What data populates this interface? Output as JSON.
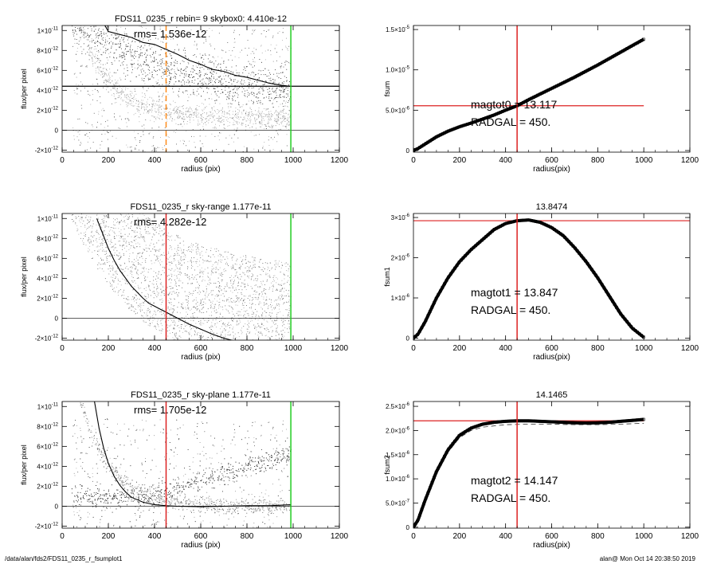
{
  "footer": {
    "path": "/data/alan/fds2/FDS11_0235_r_fsumplot1",
    "stamp": "alan@  Mon Oct 14 20:38:50 2019"
  },
  "chart_data": [
    {
      "type": "scatter",
      "title": "FDS11_0235_r rebin= 9    skybox0:  4.410e-12",
      "annotation": "rms= 1.536e-12",
      "xlabel": "radius (pix)",
      "ylabel": "flux/per pixel",
      "xlim": [
        0,
        1200
      ],
      "ylim": [
        -2.2e-12,
        1.05e-11
      ],
      "xticks": [
        0,
        200,
        400,
        600,
        800,
        1000,
        1200
      ],
      "yticks": [
        {
          "v": 1e-11,
          "m": "1×10",
          "e": "-11"
        },
        {
          "v": 8e-12,
          "m": "8×10",
          "e": "-12"
        },
        {
          "v": 6e-12,
          "m": "6×10",
          "e": "-12"
        },
        {
          "v": 4e-12,
          "m": "4×10",
          "e": "-12"
        },
        {
          "v": 2e-12,
          "m": "2×10",
          "e": "-12"
        },
        {
          "v": 0,
          "m": "0",
          "e": ""
        },
        {
          "v": -2e-12,
          "m": "-2×10",
          "e": "-12"
        }
      ],
      "hlines": [
        {
          "y": 4.41e-12,
          "color": "#000000",
          "width": 1.3
        },
        {
          "y": 0,
          "color": "#000000",
          "width": 0.7
        }
      ],
      "vlines": [
        {
          "x": 450,
          "color": "#ff8c1a",
          "dash": true
        },
        {
          "x": 990,
          "color": "#22cc22"
        }
      ],
      "profile": {
        "x": [
          185,
          200,
          250,
          300,
          350,
          400,
          450,
          500,
          550,
          600,
          650,
          700,
          750,
          800,
          850,
          900,
          950,
          990
        ],
        "y": [
          1.05e-11,
          9.9e-12,
          9.6e-12,
          9.3e-12,
          8.8e-12,
          8.6e-12,
          8.1e-12,
          7.6e-12,
          7e-12,
          6.6e-12,
          6.1e-12,
          5.9e-12,
          5.5e-12,
          5.3e-12,
          5e-12,
          4.7e-12,
          4.5e-12,
          4.4e-12
        ]
      },
      "scatter": "cloud"
    },
    {
      "type": "line",
      "title": "",
      "xlabel": "radius(pix)",
      "ylabel": "fsum",
      "xlim": [
        0,
        1200
      ],
      "ylim": [
        -2e-07,
        1.55e-05
      ],
      "xticks": [
        0,
        200,
        400,
        600,
        800,
        1000,
        1200
      ],
      "yticks": [
        {
          "v": 1.5e-05,
          "m": "1.5×10",
          "e": "-5"
        },
        {
          "v": 1e-05,
          "m": "1.0×10",
          "e": "-5"
        },
        {
          "v": 5e-06,
          "m": "5.0×10",
          "e": "-6"
        },
        {
          "v": 0,
          "m": "0",
          "e": ""
        }
      ],
      "hlines": [
        {
          "y": 5.55e-06,
          "color": "#dd2222",
          "xmax": 1000
        }
      ],
      "vlines": [
        {
          "x": 450,
          "color": "#dd2222"
        }
      ],
      "annotations": [
        "magtot0 =  13.117",
        "RADGAL =    450."
      ],
      "curve": {
        "x": [
          0,
          20,
          50,
          100,
          150,
          200,
          250,
          300,
          350,
          400,
          450,
          500,
          550,
          600,
          650,
          700,
          750,
          800,
          850,
          900,
          950,
          1000
        ],
        "y": [
          0,
          2.5e-07,
          8e-07,
          1.7e-06,
          2.4e-06,
          2.95e-06,
          3.4e-06,
          3.9e-06,
          4.4e-06,
          5e-06,
          5.55e-06,
          6.3e-06,
          7e-06,
          7.7e-06,
          8.4e-06,
          9.1e-06,
          9.85e-06,
          1.06e-05,
          1.14e-05,
          1.22e-05,
          1.3e-05,
          1.38e-05
        ]
      }
    },
    {
      "type": "scatter",
      "title": "FDS11_0235_r sky-range  1.177e-11",
      "annotation": "rms= 4.282e-12",
      "xlabel": "radius (pix)",
      "ylabel": "flux/per pixel",
      "xlim": [
        0,
        1200
      ],
      "ylim": [
        -2.2e-12,
        1.05e-11
      ],
      "xticks": [
        0,
        200,
        400,
        600,
        800,
        1000,
        1200
      ],
      "yticks": [
        {
          "v": 1e-11,
          "m": "1×10",
          "e": "-11"
        },
        {
          "v": 8e-12,
          "m": "8×10",
          "e": "-12"
        },
        {
          "v": 6e-12,
          "m": "6×10",
          "e": "-12"
        },
        {
          "v": 4e-12,
          "m": "4×10",
          "e": "-12"
        },
        {
          "v": 2e-12,
          "m": "2×10",
          "e": "-12"
        },
        {
          "v": 0,
          "m": "0",
          "e": ""
        },
        {
          "v": -2e-12,
          "m": "-2×10",
          "e": "-12"
        }
      ],
      "hlines": [
        {
          "y": 0,
          "color": "#000000",
          "width": 0.7
        }
      ],
      "vlines": [
        {
          "x": 450,
          "color": "#dd2222"
        },
        {
          "x": 990,
          "color": "#22cc22"
        }
      ],
      "profile": {
        "x": [
          150,
          175,
          200,
          225,
          250,
          275,
          300,
          325,
          350,
          375,
          400,
          425,
          450,
          475,
          500,
          550,
          600,
          650,
          700,
          750
        ],
        "y": [
          1e-11,
          8.5e-12,
          7e-12,
          5.8e-12,
          4.8e-12,
          4e-12,
          3.2e-12,
          2.6e-12,
          2e-12,
          1.5e-12,
          1.2e-12,
          9e-13,
          6e-13,
          3e-13,
          0,
          -6e-13,
          -1.1e-12,
          -1.6e-12,
          -2e-12,
          -2.3e-12
        ]
      },
      "scatter": "sparse"
    },
    {
      "type": "line",
      "title": "13.8474",
      "xlabel": "radius(pix)",
      "ylabel": "fsum1",
      "xlim": [
        0,
        1200
      ],
      "ylim": [
        -5e-08,
        3.1e-06
      ],
      "xticks": [
        0,
        200,
        400,
        600,
        800,
        1000,
        1200
      ],
      "yticks": [
        {
          "v": 3e-06,
          "m": "3×10",
          "e": "-6"
        },
        {
          "v": 2e-06,
          "m": "2×10",
          "e": "-6"
        },
        {
          "v": 1e-06,
          "m": "1×10",
          "e": "-6"
        },
        {
          "v": 0,
          "m": "0",
          "e": ""
        }
      ],
      "hlines": [
        {
          "y": 2.92e-06,
          "color": "#dd2222",
          "xmax": 1200
        }
      ],
      "vlines": [
        {
          "x": 450,
          "color": "#dd2222"
        }
      ],
      "annotations": [
        "magtot1 =  13.847",
        "RADGAL =    450."
      ],
      "curve": {
        "x": [
          0,
          20,
          50,
          100,
          150,
          200,
          250,
          300,
          350,
          400,
          450,
          500,
          550,
          600,
          650,
          700,
          750,
          800,
          850,
          900,
          950,
          1000
        ],
        "y": [
          0,
          1e-07,
          4e-07,
          1e-06,
          1.5e-06,
          1.9e-06,
          2.2e-06,
          2.45e-06,
          2.7e-06,
          2.85e-06,
          2.92e-06,
          2.94e-06,
          2.88e-06,
          2.75e-06,
          2.55e-06,
          2.25e-06,
          1.9e-06,
          1.5e-06,
          1.05e-06,
          6e-07,
          2.5e-07,
          2e-08
        ]
      }
    },
    {
      "type": "scatter",
      "title": "FDS11_0235_r sky-plane  1.177e-11",
      "annotation": "rms= 1.705e-12",
      "xlabel": "radius (pix)",
      "ylabel": "flux/per pixel",
      "xlim": [
        0,
        1200
      ],
      "ylim": [
        -2.2e-12,
        1.05e-11
      ],
      "xticks": [
        0,
        200,
        400,
        600,
        800,
        1000,
        1200
      ],
      "yticks": [
        {
          "v": 1e-11,
          "m": "1×10",
          "e": "-11"
        },
        {
          "v": 8e-12,
          "m": "8×10",
          "e": "-12"
        },
        {
          "v": 6e-12,
          "m": "6×10",
          "e": "-12"
        },
        {
          "v": 4e-12,
          "m": "4×10",
          "e": "-12"
        },
        {
          "v": 2e-12,
          "m": "2×10",
          "e": "-12"
        },
        {
          "v": 0,
          "m": "0",
          "e": ""
        },
        {
          "v": -2e-12,
          "m": "-2×10",
          "e": "-12"
        }
      ],
      "hlines": [
        {
          "y": 0,
          "color": "#000000",
          "width": 0.7
        }
      ],
      "vlines": [
        {
          "x": 450,
          "color": "#dd2222"
        },
        {
          "x": 990,
          "color": "#22cc22"
        }
      ],
      "profile": {
        "x": [
          140,
          160,
          180,
          200,
          225,
          250,
          275,
          300,
          350,
          400,
          450,
          500,
          600,
          700,
          800,
          900,
          990
        ],
        "y": [
          1.05e-11,
          7.8e-12,
          5.8e-12,
          4.3e-12,
          3e-12,
          2.1e-12,
          1.4e-12,
          9e-13,
          4e-13,
          1.5e-13,
          5e-14,
          0,
          -5e-14,
          0,
          5e-14,
          5e-14,
          1.5e-13
        ]
      },
      "scatter": "plane"
    },
    {
      "type": "line",
      "title": "14.1465",
      "xlabel": "radius(pix)",
      "ylabel": "fsum2",
      "xlim": [
        0,
        1200
      ],
      "ylim": [
        -2e-08,
        2.6e-06
      ],
      "xticks": [
        0,
        200,
        400,
        600,
        800,
        1000,
        1200
      ],
      "yticks": [
        {
          "v": 2.5e-06,
          "m": "2.5×10",
          "e": "-6"
        },
        {
          "v": 2e-06,
          "m": "2.0×10",
          "e": "-6"
        },
        {
          "v": 1.5e-06,
          "m": "1.5×10",
          "e": "-6"
        },
        {
          "v": 1e-06,
          "m": "1.0×10",
          "e": "-6"
        },
        {
          "v": 5e-07,
          "m": "5.0×10",
          "e": "-7"
        },
        {
          "v": 0,
          "m": "0",
          "e": ""
        }
      ],
      "hlines": [
        {
          "y": 2.2e-06,
          "color": "#dd2222",
          "xmax": 1000
        }
      ],
      "vlines": [
        {
          "x": 450,
          "color": "#dd2222"
        }
      ],
      "annotations": [
        "magtot2 =  14.147",
        "RADGAL =    450."
      ],
      "curve": {
        "x": [
          0,
          20,
          50,
          100,
          150,
          200,
          250,
          300,
          350,
          400,
          450,
          500,
          550,
          600,
          650,
          700,
          750,
          800,
          850,
          900,
          950,
          1000
        ],
        "y": [
          0,
          1.5e-07,
          5.5e-07,
          1.15e-06,
          1.6e-06,
          1.9e-06,
          2.05e-06,
          2.13e-06,
          2.17e-06,
          2.19e-06,
          2.2e-06,
          2.2e-06,
          2.19e-06,
          2.18e-06,
          2.17e-06,
          2.16e-06,
          2.155e-06,
          2.16e-06,
          2.17e-06,
          2.19e-06,
          2.21e-06,
          2.23e-06
        ]
      },
      "dashed_curve": {
        "x": [
          0,
          50,
          100,
          150,
          200,
          250,
          300,
          400,
          500,
          600,
          700,
          800,
          900,
          1000
        ],
        "y": [
          0,
          5.2e-07,
          1.1e-06,
          1.55e-06,
          1.85e-06,
          2e-06,
          2.07e-06,
          2.12e-06,
          2.13e-06,
          2.13e-06,
          2.12e-06,
          2.12e-06,
          2.13e-06,
          2.15e-06
        ]
      }
    }
  ]
}
